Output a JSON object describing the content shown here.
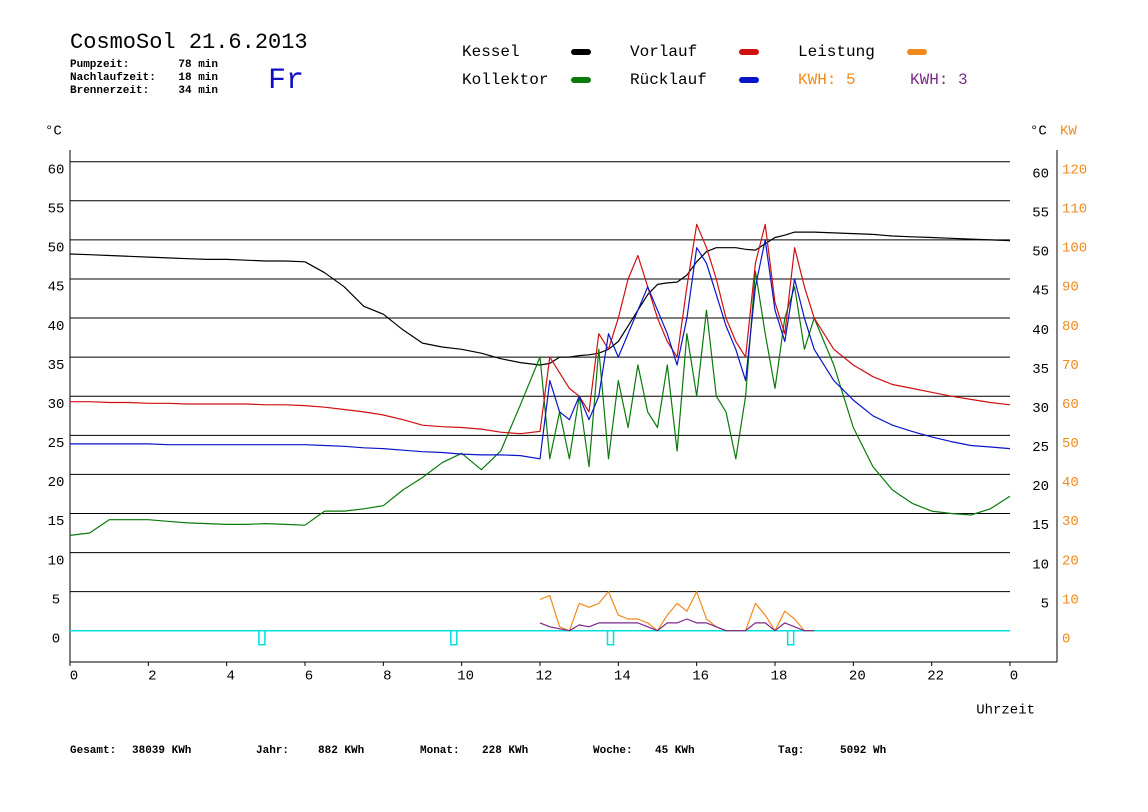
{
  "header": {
    "title": "CosmoSol 21.6.2013",
    "day": "Fr",
    "times": [
      {
        "label": "Pumpzeit:",
        "value": "78 min"
      },
      {
        "label": "Nachlaufzeit:",
        "value": "18 min"
      },
      {
        "label": "Brennerzeit:",
        "value": "34 min"
      }
    ]
  },
  "kwh_labels": [
    {
      "text": "KWH: 5",
      "color": "#f08a1c"
    },
    {
      "text": "KWH: 3",
      "color": "#7a2a8a"
    }
  ],
  "footer": [
    {
      "label": "Gesamt:",
      "value": "38039 KWh"
    },
    {
      "label": "Jahr:",
      "value": "882 KWh"
    },
    {
      "label": "Monat:",
      "value": "228 KWh"
    },
    {
      "label": "Woche:",
      "value": "45 KWh"
    },
    {
      "label": "Tag:",
      "value": "5092 Wh"
    }
  ],
  "chart_data": {
    "type": "line",
    "ylabel": "°C",
    "ylabel_right": "°C",
    "y2label": "KW",
    "xlabel": "Uhrzeit",
    "x": [
      0,
      0.5,
      1,
      1.5,
      2,
      2.5,
      3,
      3.5,
      4,
      4.5,
      5,
      5.5,
      6,
      6.5,
      7,
      7.5,
      8,
      8.5,
      9,
      9.5,
      10,
      10.5,
      11,
      11.5,
      12,
      12.25,
      12.5,
      12.75,
      13,
      13.25,
      13.5,
      13.75,
      14,
      14.25,
      14.5,
      14.75,
      15,
      15.25,
      15.5,
      15.75,
      16,
      16.25,
      16.5,
      16.75,
      17,
      17.25,
      17.5,
      17.75,
      18,
      18.25,
      18.5,
      18.75,
      19,
      19.5,
      20,
      20.5,
      21,
      21.5,
      22,
      22.5,
      23,
      23.5,
      24
    ],
    "series": [
      {
        "name": "Kessel",
        "color": "#000000",
        "values": [
          48.2,
          48.1,
          48,
          47.9,
          47.8,
          47.7,
          47.6,
          47.5,
          47.5,
          47.4,
          47.3,
          47.3,
          47.2,
          45.8,
          44,
          41.5,
          40.5,
          38.5,
          36.8,
          36.3,
          36,
          35.5,
          34.8,
          34.3,
          34,
          34.2,
          35,
          35,
          35.2,
          35.3,
          35.5,
          36,
          37,
          39,
          41,
          43,
          44.3,
          44.5,
          44.6,
          45.5,
          47.2,
          48.5,
          49,
          49,
          49,
          48.8,
          48.7,
          49.5,
          50.3,
          50.6,
          51,
          51,
          51,
          50.9,
          50.8,
          50.7,
          50.5,
          50.4,
          50.3,
          50.2,
          50.1,
          50,
          49.9
        ]
      },
      {
        "name": "Kollektor",
        "color": "#0a7a0a",
        "values": [
          12.2,
          12.5,
          14.2,
          14.2,
          14.2,
          14,
          13.8,
          13.7,
          13.6,
          13.6,
          13.7,
          13.6,
          13.5,
          15.3,
          15.3,
          15.6,
          16,
          18,
          19.6,
          21.5,
          22.7,
          20.6,
          23,
          28.9,
          35,
          22,
          28,
          22,
          30,
          21,
          36,
          22,
          32,
          26,
          34,
          28,
          26,
          34,
          23,
          38,
          30,
          41,
          30,
          28,
          22,
          30,
          46,
          38,
          31,
          40,
          44,
          36,
          40,
          34,
          26,
          21,
          18,
          16.3,
          15.3,
          15,
          14.8,
          15.6,
          17.2
        ]
      },
      {
        "name": "Vorlauf",
        "color": "#d01010",
        "values": [
          29.3,
          29.3,
          29.2,
          29.2,
          29.1,
          29.1,
          29,
          29,
          29,
          29,
          28.9,
          28.9,
          28.8,
          28.6,
          28.3,
          28,
          27.6,
          27,
          26.3,
          26.1,
          26,
          25.8,
          25.4,
          25.2,
          25.5,
          35,
          33,
          31,
          30,
          28,
          38,
          36,
          40,
          45,
          48,
          44,
          40,
          37,
          35,
          44,
          52,
          49,
          45,
          40,
          37,
          35,
          47,
          52,
          42,
          38,
          49,
          44,
          40,
          36,
          34,
          32.5,
          31.5,
          31,
          30.5,
          30,
          29.6,
          29.2,
          28.9
        ]
      },
      {
        "name": "Rücklauf",
        "color": "#0a14c8",
        "values": [
          23.9,
          23.9,
          23.9,
          23.9,
          23.9,
          23.8,
          23.8,
          23.8,
          23.8,
          23.8,
          23.8,
          23.8,
          23.8,
          23.7,
          23.6,
          23.4,
          23.3,
          23.1,
          22.9,
          22.8,
          22.6,
          22.5,
          22.5,
          22.4,
          22,
          32,
          28,
          27,
          30,
          27,
          30,
          38,
          35,
          38,
          41,
          44,
          41,
          38,
          34,
          40,
          49,
          47,
          43,
          39,
          36,
          32,
          44,
          50,
          41,
          37,
          45,
          40,
          36,
          32,
          29.5,
          27.5,
          26.3,
          25.5,
          24.8,
          24.2,
          23.7,
          23.5,
          23.3
        ]
      },
      {
        "name": "Leistung",
        "color": "#f08a1c",
        "axis": "y2",
        "values": [
          null,
          null,
          null,
          null,
          null,
          null,
          null,
          null,
          null,
          null,
          null,
          null,
          null,
          null,
          null,
          null,
          null,
          null,
          null,
          null,
          null,
          null,
          null,
          null,
          8,
          9,
          1,
          0,
          7,
          6,
          7,
          10,
          4,
          3,
          3,
          2,
          0,
          4,
          7,
          5,
          10,
          3,
          1,
          0,
          0,
          0,
          7,
          4,
          0,
          5,
          3,
          0,
          0,
          null,
          null,
          null,
          null,
          null,
          null,
          null,
          null,
          null,
          null
        ]
      },
      {
        "color": "#7a2a8a",
        "axis": "y2",
        "values": [
          null,
          null,
          null,
          null,
          null,
          null,
          null,
          null,
          null,
          null,
          null,
          null,
          null,
          null,
          null,
          null,
          null,
          null,
          null,
          null,
          null,
          null,
          null,
          null,
          2,
          1,
          0.5,
          0,
          1.5,
          1,
          2,
          2,
          2,
          2,
          2,
          1,
          0,
          2,
          2,
          3,
          2,
          2,
          1,
          0,
          0,
          0,
          2,
          2,
          0,
          2,
          1,
          0,
          0,
          null,
          null,
          null,
          null,
          null,
          null,
          null,
          null,
          null,
          null
        ]
      }
    ],
    "burner": {
      "color": "#00e0e0",
      "level": 0,
      "x": [
        4.9,
        9.8,
        13.8,
        18.4
      ]
    },
    "xlim": [
      0,
      25.2
    ],
    "xticks": [
      0,
      2,
      4,
      6,
      8,
      10,
      12,
      14,
      16,
      18,
      20,
      22,
      {
        "value": 24,
        "label": "0"
      }
    ],
    "ylim": [
      -4,
      61.5
    ],
    "yticks": [
      0,
      5,
      10,
      15,
      20,
      25,
      30,
      35,
      40,
      45,
      50,
      55,
      60
    ],
    "yticks_right": [
      5,
      10,
      15,
      20,
      25,
      30,
      35,
      40,
      45,
      50,
      55,
      60
    ],
    "y2lim": [
      -8,
      123
    ],
    "y2ticks": [
      0,
      10,
      20,
      30,
      40,
      50,
      60,
      70,
      80,
      90,
      100,
      110,
      120
    ],
    "y2color": "#f08a1c",
    "grid": true
  }
}
